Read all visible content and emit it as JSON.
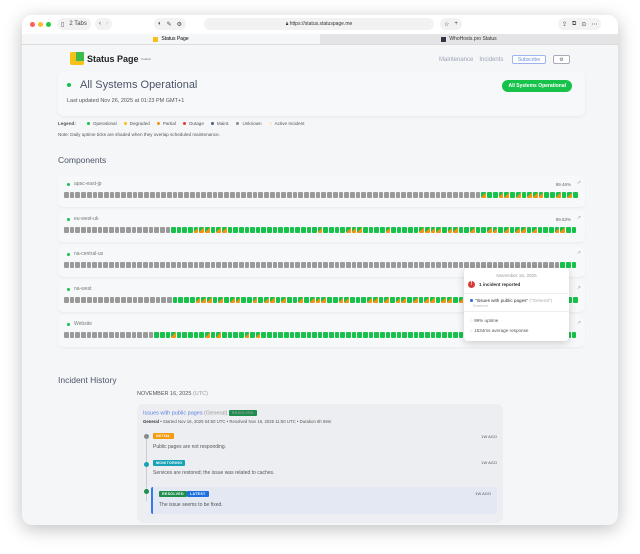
{
  "browser": {
    "tabs_count": "2 Tabs",
    "url": "https://status.statuspage.me",
    "tabs": [
      {
        "label": "Status Page"
      },
      {
        "label": "WhoHosts.pro Status"
      }
    ]
  },
  "header": {
    "logo": "Status Page",
    "logo_sub": "hosted",
    "nav": [
      "Maintenance",
      "Incidents"
    ],
    "subscribe": "Subscribe",
    "settings_icon": "gear-icon"
  },
  "status": {
    "title": "All Systems Operational",
    "updated": "Last updated Nov 26, 2025 at 01:23 PM GMT+1",
    "badge": "All Systems Operational"
  },
  "legend": {
    "label": "Legend:",
    "items": [
      {
        "label": "Operational",
        "color": "#16c24a"
      },
      {
        "label": "Degraded",
        "color": "#f6c117"
      },
      {
        "label": "Partial",
        "color": "#f39313"
      },
      {
        "label": "Outage",
        "color": "#e53935"
      },
      {
        "label": "Maint.",
        "color": "#4b5f75"
      },
      {
        "label": "Unknown",
        "color": "#8a8a8a"
      },
      {
        "label": "Active Incident",
        "color": "#fbe9d8"
      }
    ],
    "note": "Note: Daily uptime ticks are shaded when they overlap scheduled maintenance."
  },
  "components": {
    "heading": "Components",
    "items": [
      {
        "name": "apac-east-jp",
        "uptime": "99.46%",
        "ticks": "gggggggggggggggggggggggggggggggggggggggggggggggggggggggggggggggggggggggggpooppopopppoopopo"
      },
      {
        "name": "eu-west-uk",
        "uptime": "99.63%",
        "ticks": "gggggggggggggggggggoooopppoppoooooooooooooooopoooopppoooopoooooppppoppoopooppopoppopoooppoo"
      },
      {
        "name": "na-central-us",
        "uptime": "",
        "ticks": "ggggggggggggggggggggggggggggggggggggggggggggggggggggggggggggggggggggggggggggggggggggggggooo"
      },
      {
        "name": "na-west",
        "uptime": "",
        "ticks": "gggggggggggggggggggoooopppopoppoopoppopoopopppooppoooppopoppopoppoppopopooppopopooppopoooo"
      },
      {
        "name": "Website",
        "uptime": "",
        "ticks": "ggggggggggggggggooopooooopopoooopopoooooooooooooooooooooooooooooooooooopppoooopooopoppoppoo"
      }
    ]
  },
  "tooltip": {
    "date": "November 16, 2025",
    "count": "1 incident reported",
    "incident": "\"Issues with public pages\"",
    "incident_group": "(\"General\")",
    "incident_status": "Resolved",
    "uptime": "99% uptime",
    "response": "1534ms average response"
  },
  "history": {
    "heading": "Incident History",
    "date": "NOVEMBER 16, 2025",
    "tz": "(UTC)",
    "incident": {
      "title": "Issues with public pages",
      "group": "(General)",
      "badge": "RESOLVED",
      "meta_group": "General",
      "meta": " • Started Nov 16, 2025 04:50 UTC • Resolved Nov 16, 2025 11:50 UTC • Duration 6h 59m",
      "updates": [
        {
          "badge": "INITIAL",
          "color": "#f39c12",
          "dot": "#8a8a8a",
          "ago": "1W AGO",
          "text": "Public pages are not responding."
        },
        {
          "badge": "MONITORING",
          "color": "#17a2b8",
          "dot": "#17a2b8",
          "ago": "1W AGO",
          "text": "Services are restored; the issue was related to caches."
        },
        {
          "badge": "RESOLVED",
          "latest": "LATEST",
          "color": "#1e8e4e",
          "dot": "#1e8e4e",
          "ago": "1W AGO",
          "text": "The issue seems to be fixed."
        }
      ]
    }
  }
}
